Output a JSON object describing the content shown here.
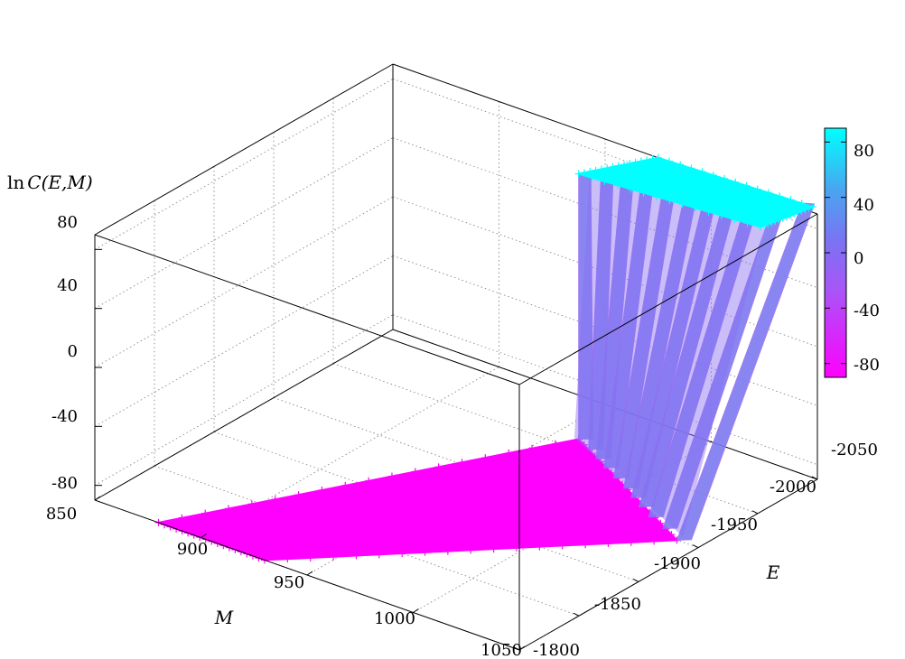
{
  "chart_data": {
    "type": "surface3d",
    "zlabel": "lnC(E,M)",
    "zlabel_parts": {
      "ln": "ln",
      "func": "C",
      "args": "(E,M)"
    },
    "xlabel": "M",
    "ylabel": "E",
    "x_axis": {
      "name": "M",
      "range": [
        850,
        1050
      ],
      "ticks": [
        "850",
        "900",
        "950",
        "1000",
        "1050"
      ]
    },
    "y_axis": {
      "name": "E",
      "range": [
        -1800,
        -2050
      ],
      "ticks": [
        "-1800",
        "-1850",
        "-1900",
        "-1950",
        "-2000",
        "-2050"
      ]
    },
    "z_axis": {
      "range": [
        -80,
        90
      ],
      "ticks": [
        "-80",
        "-40",
        "0",
        "40",
        "80"
      ]
    },
    "colorbar": {
      "ticks": [
        "80",
        "40",
        "0",
        "-40",
        "-80"
      ],
      "range": [
        -90,
        90
      ],
      "colors": {
        "low": "#ff00ff",
        "mid": "#7a74f2",
        "high": "#00ffff"
      }
    },
    "low_plateau": {
      "z": -90,
      "corners": [
        {
          "M": 880,
          "E": -1800
        },
        {
          "M": 930,
          "E": -1800
        },
        {
          "M": 1040,
          "E": -1950
        },
        {
          "M": 960,
          "E": -2010
        }
      ]
    },
    "high_plateau": {
      "z": 90,
      "corners": [
        {
          "M": 960,
          "E": -2010
        },
        {
          "M": 975,
          "E": -2050
        },
        {
          "M": 1045,
          "E": -2055
        },
        {
          "M": 1040,
          "E": -2020
        }
      ]
    },
    "marker": "+",
    "grid": true
  }
}
